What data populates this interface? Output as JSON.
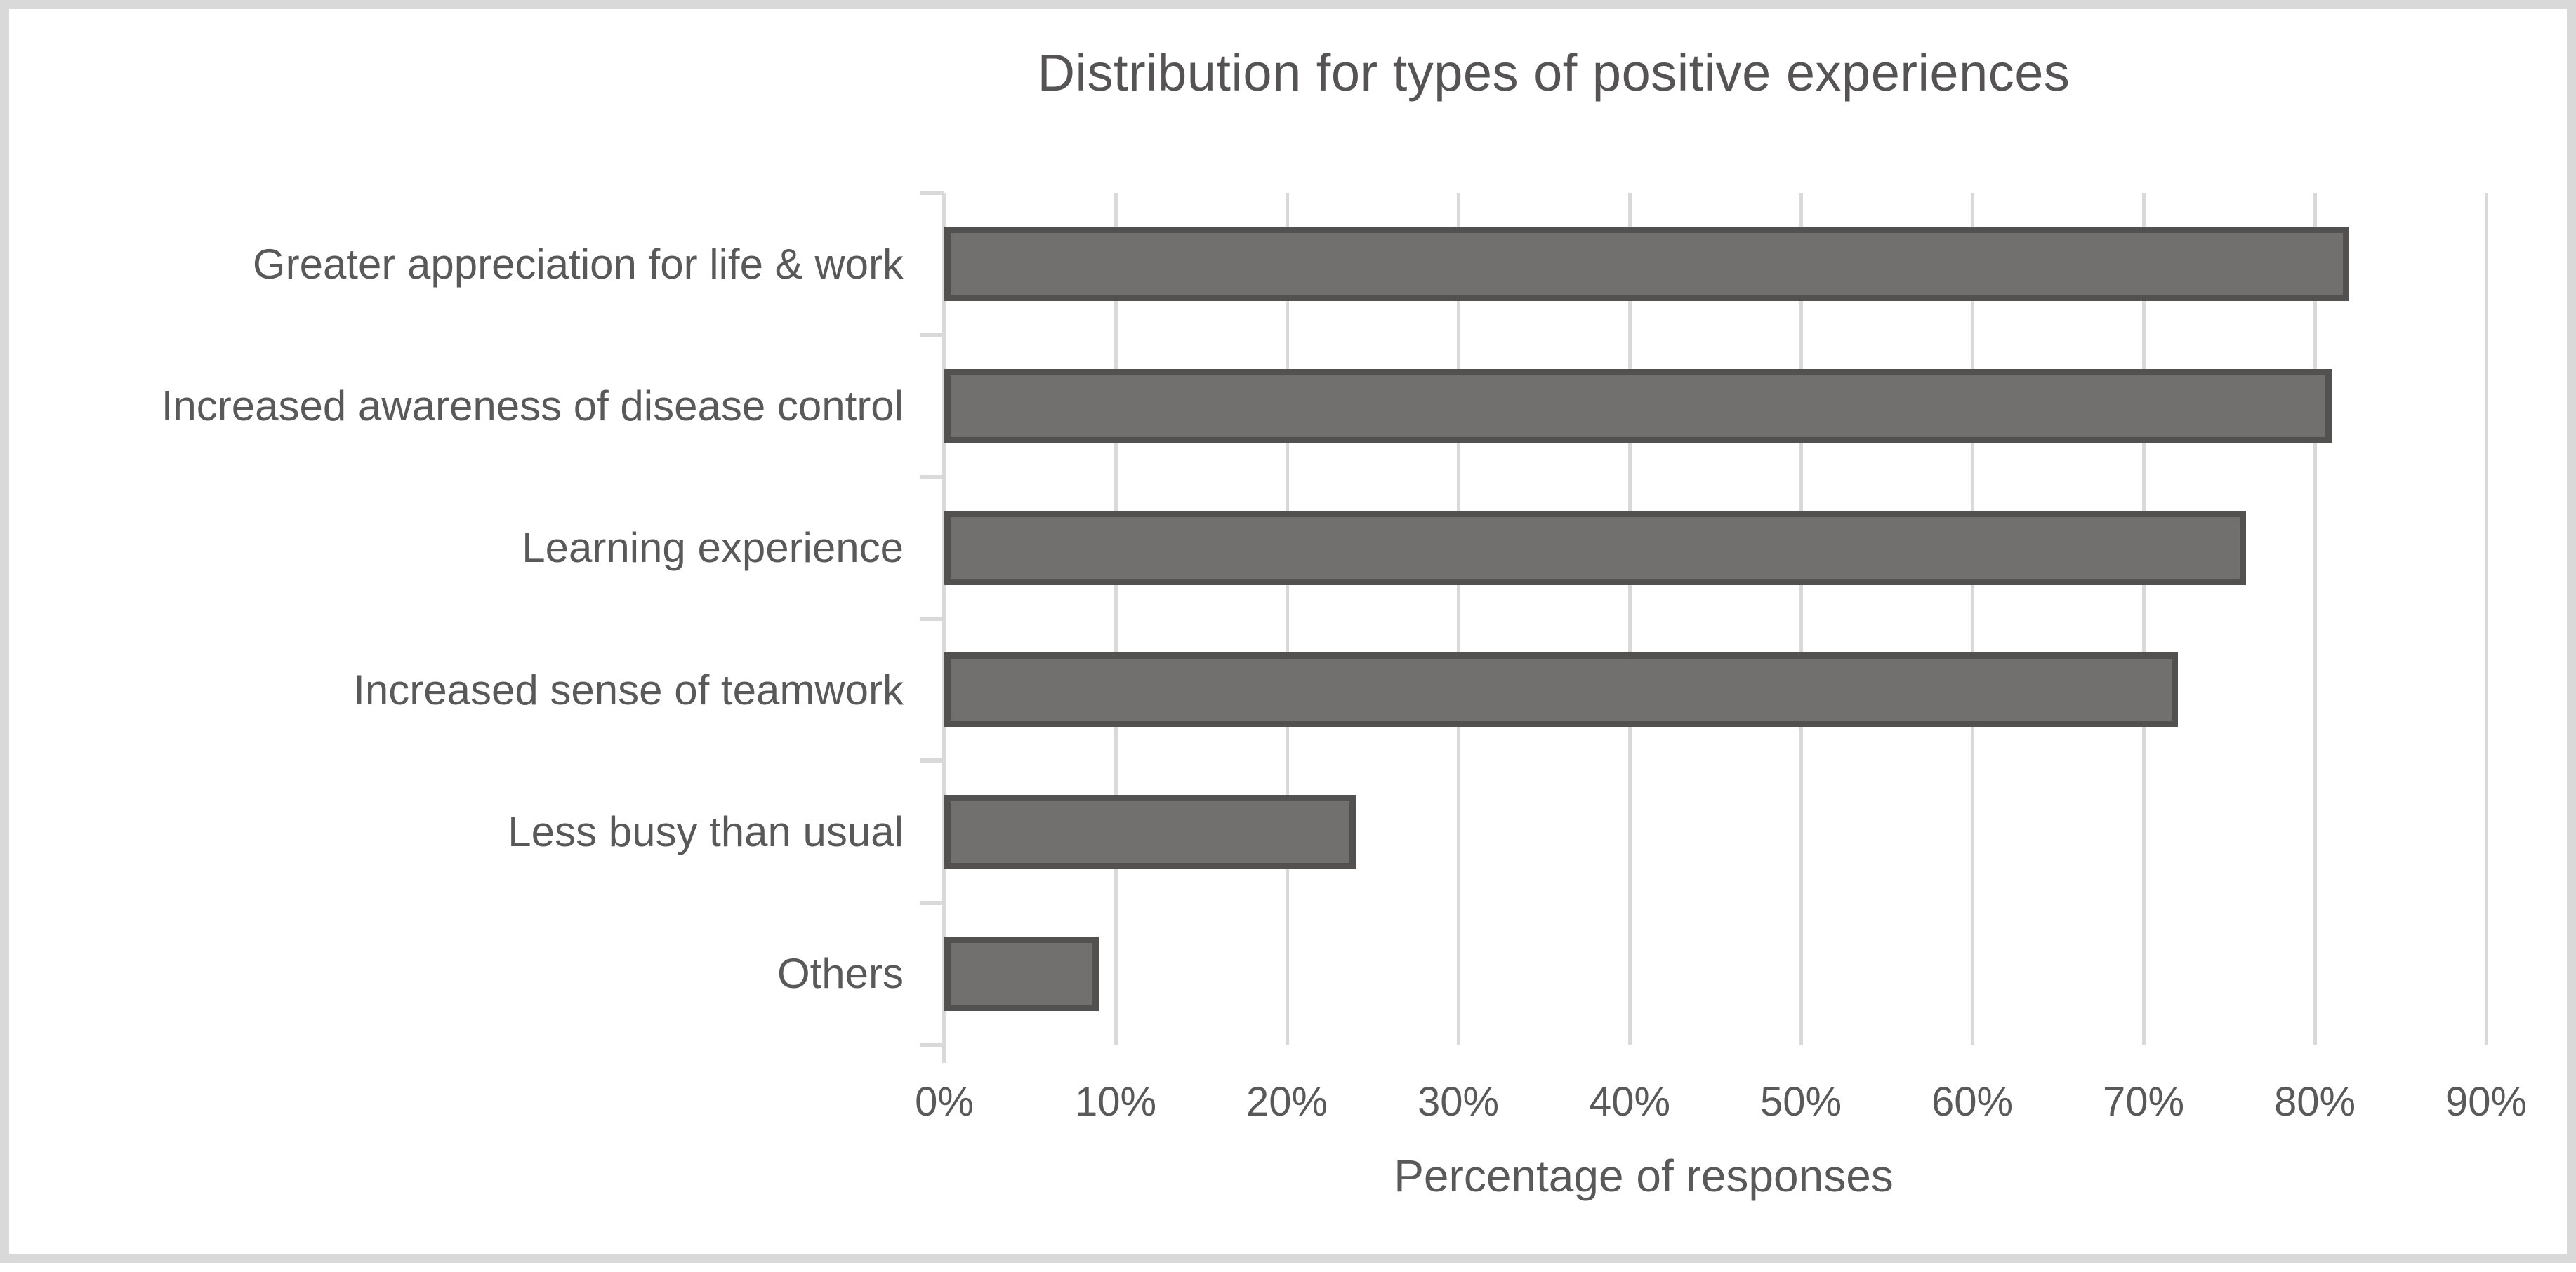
{
  "title": "Distribution for types of positive experiences",
  "chart_data": {
    "type": "bar",
    "orientation": "horizontal",
    "title": "Distribution for types of positive experiences",
    "categories": [
      "Greater appreciation for life & work",
      "Increased awareness of disease control",
      "Learning experience",
      "Increased sense of teamwork",
      "Less busy than usual",
      "Others"
    ],
    "values": [
      82,
      81,
      76,
      72,
      24,
      9
    ],
    "unit": "%",
    "xlabel": "Percentage of responses",
    "ylabel": "",
    "xlim": [
      0,
      90
    ],
    "x_tick_interval": 10,
    "x_tick_labels": [
      "0%",
      "10%",
      "20%",
      "30%",
      "40%",
      "50%",
      "60%",
      "70%",
      "80%",
      "90%"
    ],
    "grid": "vertical-major",
    "legend": "none",
    "colors": {
      "bar_fill": "#726F6F",
      "bar_border": "#535050",
      "gridline": "#D9D9D9",
      "axis_line": "#D9D9D9",
      "text": "#595959",
      "frame_border": "#D9D9D9",
      "background": "#FFFFFF"
    }
  }
}
